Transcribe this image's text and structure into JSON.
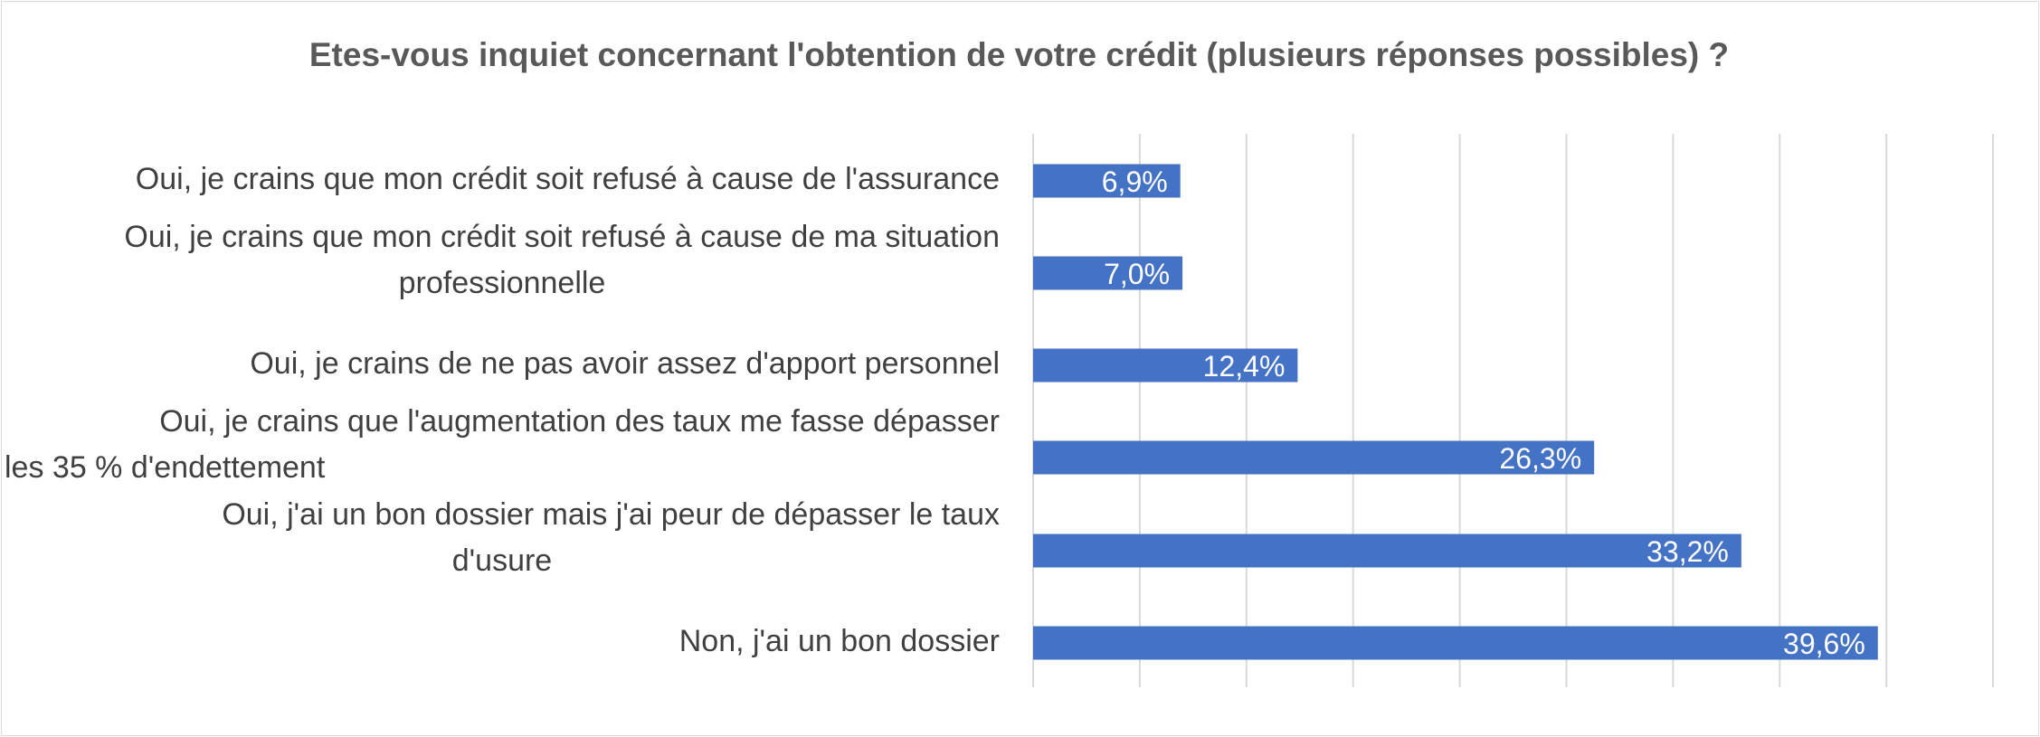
{
  "chart_data": {
    "type": "bar",
    "orientation": "horizontal",
    "title": "Etes-vous inquiet concernant l'obtention de votre crédit (plusieurs réponses possibles) ?",
    "categories": [
      "Oui, je crains que mon crédit soit refusé à cause de l'assurance",
      "Oui, je crains que mon crédit soit refusé à cause de ma situation professionnelle",
      "Oui, je crains de ne pas avoir assez d'apport personnel",
      "Oui, je crains que l'augmentation des taux me fasse dépasser les 35 % d'endettement",
      "Oui, j'ai un bon dossier mais j'ai peur de dépasser le taux d'usure",
      "Non, j'ai un bon dossier"
    ],
    "category_lines": [
      [
        "Oui, je crains que mon crédit soit refusé à cause de l'assurance"
      ],
      [
        "Oui, je crains que mon crédit soit refusé à cause de ma situation",
        "professionnelle"
      ],
      [
        "Oui, je crains de ne pas avoir assez d'apport personnel"
      ],
      [
        "Oui, je crains que l'augmentation des taux me fasse dépasser",
        "les 35 % d'endettement"
      ],
      [
        "Oui, j'ai un bon dossier mais j'ai peur de dépasser le taux",
        "d'usure"
      ],
      [
        "Non, j'ai un bon dossier"
      ]
    ],
    "values": [
      6.9,
      7.0,
      12.4,
      26.3,
      33.2,
      39.6
    ],
    "data_labels": [
      "6,9%",
      "7,0%",
      "12,4%",
      "26,3%",
      "33,2%",
      "39,6%"
    ],
    "xlim": [
      0,
      45
    ],
    "grid": true,
    "bar_color": "#4472c4",
    "grid_color": "#d9d9d9",
    "label_color": "#404040",
    "title_color": "#595959"
  }
}
